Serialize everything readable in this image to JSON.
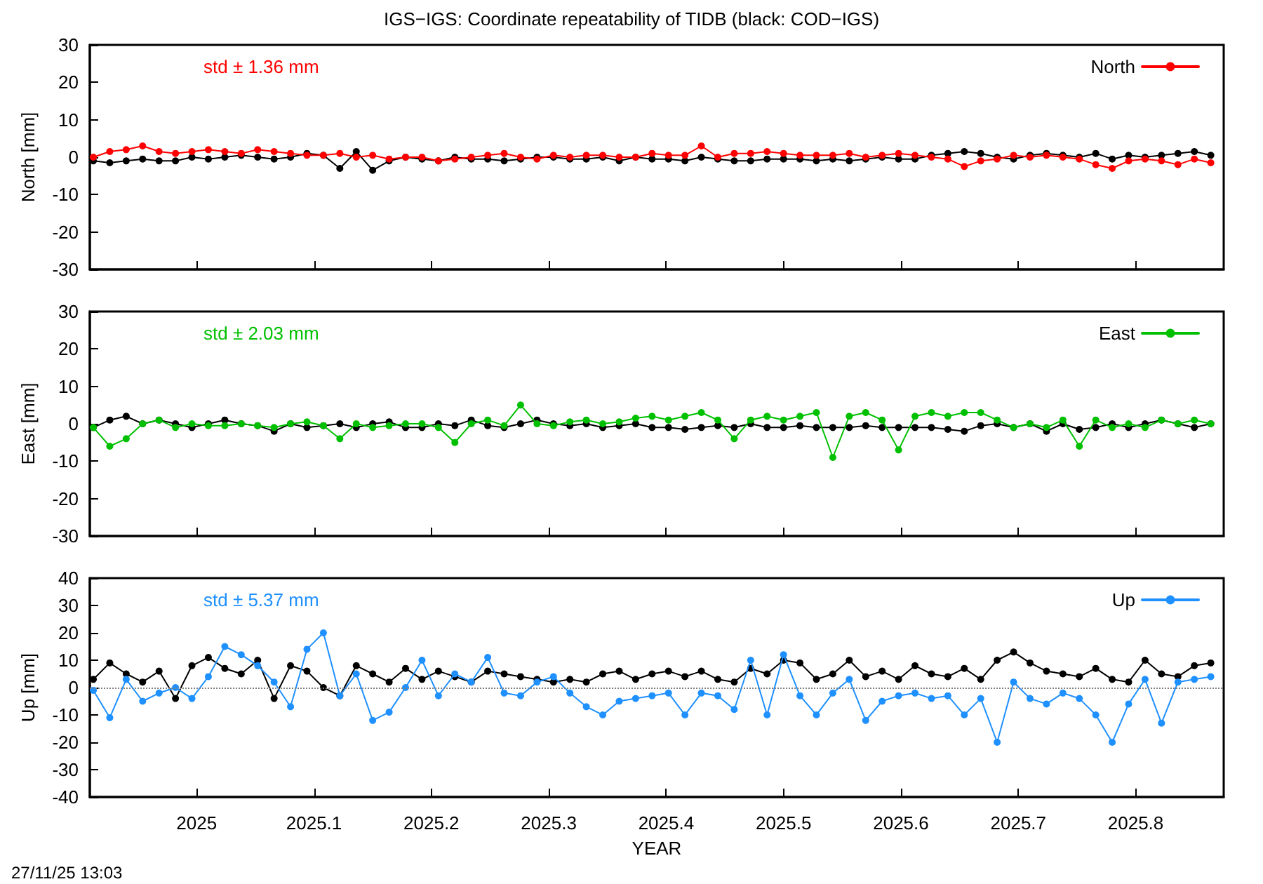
{
  "chart_data": [
    {
      "type": "line",
      "title": "IGS−IGS: Coordinate repeatability of TIDB (black: COD−IGS)",
      "ylabel": "North [mm]",
      "annotations": [
        "std ± 1.36 mm"
      ],
      "x": [
        2024.912,
        2024.926,
        2024.94,
        2024.954,
        2024.968,
        2024.982,
        2024.996,
        2025.01,
        2025.024,
        2025.038,
        2025.052,
        2025.066,
        2025.08,
        2025.094,
        2025.108,
        2025.122,
        2025.136,
        2025.15,
        2025.164,
        2025.178,
        2025.192,
        2025.206,
        2025.22,
        2025.234,
        2025.248,
        2025.262,
        2025.276,
        2025.29,
        2025.304,
        2025.318,
        2025.332,
        2025.346,
        2025.36,
        2025.374,
        2025.388,
        2025.402,
        2025.416,
        2025.43,
        2025.444,
        2025.458,
        2025.472,
        2025.486,
        2025.5,
        2025.514,
        2025.528,
        2025.542,
        2025.556,
        2025.57,
        2025.584,
        2025.598,
        2025.612,
        2025.626,
        2025.64,
        2025.654,
        2025.668,
        2025.682,
        2025.696,
        2025.71,
        2025.724,
        2025.738,
        2025.752,
        2025.766,
        2025.78,
        2025.794,
        2025.808,
        2025.822,
        2025.836,
        2025.85,
        2025.864
      ],
      "series": [
        {
          "color": "#000000",
          "values": [
            -1,
            -1.5,
            -1,
            -0.5,
            -1,
            -1,
            0,
            -0.5,
            0,
            0.5,
            0,
            -0.5,
            0,
            1,
            0.5,
            -3,
            1.5,
            -3.5,
            -1,
            0,
            -0.5,
            -1,
            0,
            -0.5,
            -0.5,
            -1,
            -0.5,
            0,
            0,
            -0.5,
            -0.5,
            0,
            -1,
            0,
            -0.5,
            -0.5,
            -1,
            0,
            -0.5,
            -1,
            -1,
            -0.5,
            -0.5,
            -0.5,
            -1,
            -0.5,
            -1,
            -0.5,
            0,
            -0.5,
            -0.5,
            0.5,
            1,
            1.5,
            1,
            0,
            -0.5,
            0.5,
            1,
            0.5,
            0,
            1,
            -0.5,
            0.5,
            0,
            0.5,
            1,
            1.5,
            0.5
          ]
        },
        {
          "name": "North",
          "color": "#ff0000",
          "values": [
            0,
            1.5,
            2,
            3,
            1.5,
            1,
            1.5,
            2,
            1.5,
            1,
            2,
            1.5,
            1,
            0.5,
            0.5,
            1,
            0,
            0.5,
            -0.5,
            0,
            0,
            -1,
            -0.5,
            0,
            0.5,
            1,
            0,
            -0.5,
            0.5,
            0,
            0.5,
            0.5,
            0,
            0,
            1,
            0.5,
            0.5,
            3,
            0,
            1,
            1,
            1.5,
            1,
            0.5,
            0.5,
            0.5,
            1,
            0,
            0.5,
            1,
            0.5,
            0,
            -0.5,
            -2.5,
            -1,
            -0.5,
            0.5,
            0,
            0.5,
            0,
            -0.5,
            -2,
            -3,
            -1,
            -0.5,
            -1,
            -2,
            -0.5,
            -1.5
          ]
        }
      ],
      "xlim": [
        2024.909,
        2025.875
      ],
      "xticks": [
        2025,
        2025.1,
        2025.2,
        2025.3,
        2025.4,
        2025.5,
        2025.6,
        2025.7,
        2025.8
      ],
      "ylim": [
        -30,
        30
      ],
      "yticks": [
        -30,
        -20,
        -10,
        0,
        10,
        20,
        30
      ],
      "tick_labels": "y",
      "legend": "top right",
      "marker": "circle",
      "line_style": "solid"
    },
    {
      "type": "line",
      "ylabel": "East [mm]",
      "annotations": [
        "std ± 2.03 mm"
      ],
      "x": [
        2024.912,
        2024.926,
        2024.94,
        2024.954,
        2024.968,
        2024.982,
        2024.996,
        2025.01,
        2025.024,
        2025.038,
        2025.052,
        2025.066,
        2025.08,
        2025.094,
        2025.108,
        2025.122,
        2025.136,
        2025.15,
        2025.164,
        2025.178,
        2025.192,
        2025.206,
        2025.22,
        2025.234,
        2025.248,
        2025.262,
        2025.276,
        2025.29,
        2025.304,
        2025.318,
        2025.332,
        2025.346,
        2025.36,
        2025.374,
        2025.388,
        2025.402,
        2025.416,
        2025.43,
        2025.444,
        2025.458,
        2025.472,
        2025.486,
        2025.5,
        2025.514,
        2025.528,
        2025.542,
        2025.556,
        2025.57,
        2025.584,
        2025.598,
        2025.612,
        2025.626,
        2025.64,
        2025.654,
        2025.668,
        2025.682,
        2025.696,
        2025.71,
        2025.724,
        2025.738,
        2025.752,
        2025.766,
        2025.78,
        2025.794,
        2025.808,
        2025.822,
        2025.836,
        2025.85,
        2025.864
      ],
      "series": [
        {
          "color": "#000000",
          "values": [
            -1,
            1,
            2,
            0,
            1,
            0,
            -1,
            0,
            1,
            0,
            -0.5,
            -2,
            0,
            -1,
            -0.5,
            0,
            -1,
            0,
            0.5,
            -1,
            -1,
            0,
            -0.5,
            1,
            -0.5,
            -1,
            0,
            1,
            0,
            -0.5,
            0,
            -1,
            -0.5,
            0,
            -1,
            -1,
            -1.5,
            -1,
            -0.5,
            -1,
            0,
            -1,
            -1,
            -0.5,
            -1,
            -1,
            -1,
            -0.5,
            -1,
            -1,
            -1,
            -1,
            -1.5,
            -2,
            -0.5,
            0,
            -1,
            0,
            -2,
            0,
            -1.5,
            -1,
            0,
            -1,
            0,
            1,
            0,
            -1,
            0
          ]
        },
        {
          "name": "East",
          "color": "#00c000",
          "values": [
            -1,
            -6,
            -4,
            0,
            1,
            -1,
            0,
            -0.5,
            -0.5,
            0,
            -0.5,
            -1,
            0,
            0.5,
            -0.5,
            -4,
            0,
            -1,
            -0.5,
            0,
            0,
            -1,
            -5,
            0,
            1,
            -0.5,
            5,
            0,
            -0.5,
            0.5,
            1,
            0,
            0.5,
            1.5,
            2,
            1,
            2,
            3,
            1,
            -4,
            1,
            2,
            1,
            2,
            3,
            -9,
            2,
            3,
            1,
            -7,
            2,
            3,
            2,
            3,
            3,
            1,
            -1,
            0,
            -1,
            1,
            -6,
            1,
            -1,
            0,
            -1,
            1,
            0,
            1,
            0
          ]
        }
      ],
      "xlim": [
        2024.909,
        2025.875
      ],
      "xticks": [
        2025,
        2025.1,
        2025.2,
        2025.3,
        2025.4,
        2025.5,
        2025.6,
        2025.7,
        2025.8
      ],
      "ylim": [
        -30,
        30
      ],
      "yticks": [
        -30,
        -20,
        -10,
        0,
        10,
        20,
        30
      ],
      "tick_labels": "y",
      "legend": "top right",
      "marker": "circle",
      "line_style": "solid"
    },
    {
      "type": "line",
      "xlabel": "YEAR",
      "ylabel": "Up [mm]",
      "annotations": [
        "std ± 5.37 mm",
        "27/11/25 13:03"
      ],
      "x": [
        2024.912,
        2024.926,
        2024.94,
        2024.954,
        2024.968,
        2024.982,
        2024.996,
        2025.01,
        2025.024,
        2025.038,
        2025.052,
        2025.066,
        2025.08,
        2025.094,
        2025.108,
        2025.122,
        2025.136,
        2025.15,
        2025.164,
        2025.178,
        2025.192,
        2025.206,
        2025.22,
        2025.234,
        2025.248,
        2025.262,
        2025.276,
        2025.29,
        2025.304,
        2025.318,
        2025.332,
        2025.346,
        2025.36,
        2025.374,
        2025.388,
        2025.402,
        2025.416,
        2025.43,
        2025.444,
        2025.458,
        2025.472,
        2025.486,
        2025.5,
        2025.514,
        2025.528,
        2025.542,
        2025.556,
        2025.57,
        2025.584,
        2025.598,
        2025.612,
        2025.626,
        2025.64,
        2025.654,
        2025.668,
        2025.682,
        2025.696,
        2025.71,
        2025.724,
        2025.738,
        2025.752,
        2025.766,
        2025.78,
        2025.794,
        2025.808,
        2025.822,
        2025.836,
        2025.85,
        2025.864
      ],
      "series": [
        {
          "color": "#000000",
          "values": [
            3,
            9,
            5,
            2,
            6,
            -4,
            8,
            11,
            7,
            5,
            10,
            -4,
            8,
            6,
            0,
            -3,
            8,
            5,
            2,
            7,
            3,
            6,
            4,
            2,
            6,
            5,
            4,
            3,
            2,
            3,
            2,
            5,
            6,
            3,
            5,
            6,
            4,
            6,
            3,
            2,
            7,
            5,
            10,
            9,
            3,
            5,
            10,
            4,
            6,
            3,
            8,
            5,
            4,
            7,
            3,
            10,
            13,
            9,
            6,
            5,
            4,
            7,
            3,
            2,
            10,
            5,
            4,
            8,
            9
          ]
        },
        {
          "name": "Up",
          "color": "#1e90ff",
          "values": [
            -1,
            -11,
            3,
            -5,
            -2,
            0,
            -4,
            4,
            15,
            12,
            8,
            2,
            -7,
            14,
            20,
            -3,
            5,
            -12,
            -9,
            0,
            10,
            -3,
            5,
            2,
            11,
            -2,
            -3,
            2,
            4,
            -2,
            -7,
            -10,
            -5,
            -4,
            -3,
            -2,
            -10,
            -2,
            -3,
            -8,
            10,
            -10,
            12,
            -3,
            -10,
            -2,
            3,
            -12,
            -5,
            -3,
            -2,
            -4,
            -3,
            -10,
            -4,
            -20,
            2,
            -4,
            -6,
            -2,
            -4,
            -10,
            -20,
            -6,
            3,
            -13,
            2,
            3,
            4
          ]
        }
      ],
      "xlim": [
        2024.909,
        2025.875
      ],
      "xticks": [
        2025,
        2025.1,
        2025.2,
        2025.3,
        2025.4,
        2025.5,
        2025.6,
        2025.7,
        2025.8
      ],
      "ylim": [
        -40,
        40
      ],
      "yticks": [
        -40,
        -30,
        -20,
        -10,
        0,
        10,
        20,
        30,
        40
      ],
      "legend": "top right",
      "marker": "circle",
      "line_style": "solid",
      "ref_lines": [
        {
          "axis": "y",
          "value": 0,
          "color": "#808080",
          "line_style": "dotted"
        }
      ]
    }
  ]
}
